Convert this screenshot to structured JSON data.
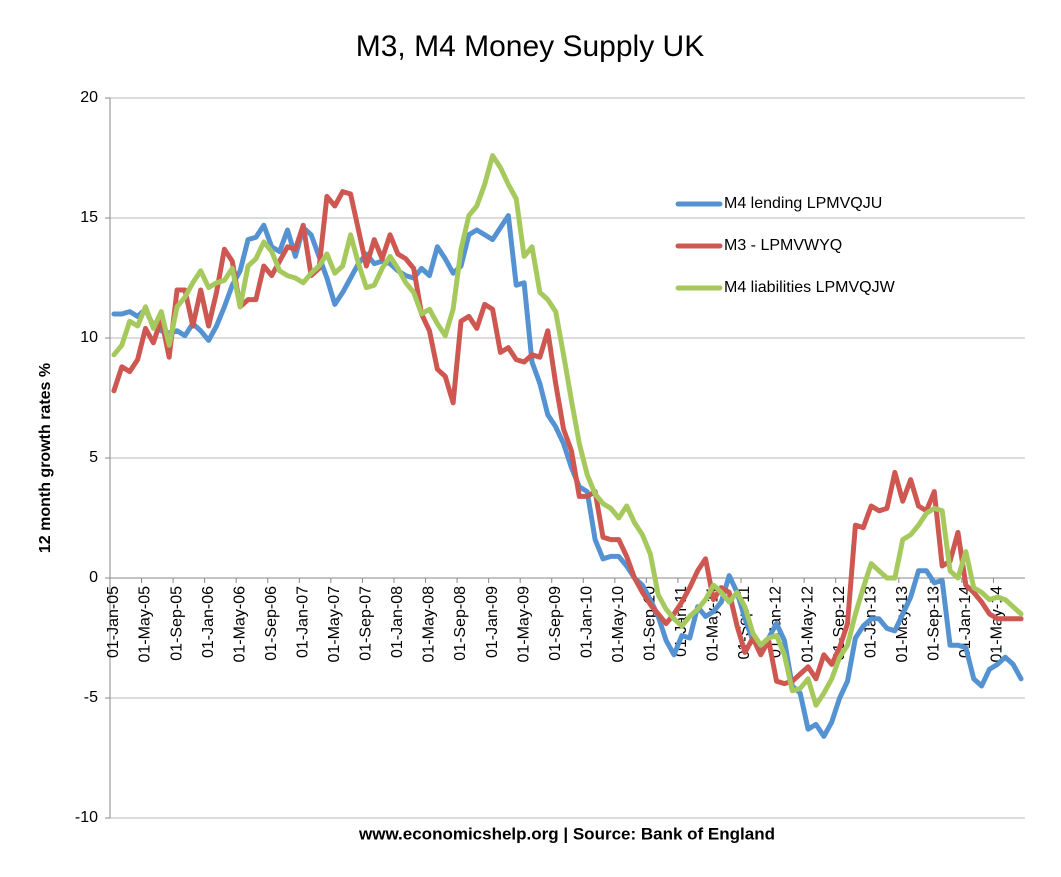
{
  "chart_data": {
    "type": "line",
    "title": "M3, M4 Money Supply UK",
    "y_label": "12 month growth rates %",
    "annotation": "www.economicshelp.org | Source: Bank of England",
    "categories": [
      "01-Jan-05",
      null,
      null,
      null,
      "01-May-05",
      null,
      null,
      null,
      "01-Sep-05",
      null,
      null,
      null,
      "01-Jan-06",
      null,
      null,
      null,
      "01-May-06",
      null,
      null,
      null,
      "01-Sep-06",
      null,
      null,
      null,
      "01-Jan-07",
      null,
      null,
      null,
      "01-May-07",
      null,
      null,
      null,
      "01-Sep-07",
      null,
      null,
      null,
      "01-Jan-08",
      null,
      null,
      null,
      "01-May-08",
      null,
      null,
      null,
      "01-Sep-08",
      null,
      null,
      null,
      "01-Jan-09",
      null,
      null,
      null,
      "01-May-09",
      null,
      null,
      null,
      "01-Sep-09",
      null,
      null,
      null,
      "01-Jan-10",
      null,
      null,
      null,
      "01-May-10",
      null,
      null,
      null,
      "01-Sep-10",
      null,
      null,
      null,
      "01-Jan-11",
      null,
      null,
      null,
      "01-May-11",
      null,
      null,
      null,
      "01-Sep-11",
      null,
      null,
      null,
      "01-Jan-12",
      null,
      null,
      null,
      "01-May-12",
      null,
      null,
      null,
      "01-Sep-12",
      null,
      null,
      null,
      "01-Jan-13",
      null,
      null,
      null,
      "01-May-13",
      null,
      null,
      null,
      "01-Sep-13",
      null,
      null,
      null,
      "01-Jan-14",
      null,
      null,
      null,
      "01-May-14",
      null,
      null,
      null
    ],
    "series": [
      {
        "name": "M4 lending LPMVQJU",
        "color": "#5592d2",
        "values": [
          11,
          11,
          11.1,
          10.9,
          11.2,
          10.5,
          10.3,
          10.2,
          10.3,
          10.1,
          10.6,
          10.3,
          9.9,
          10.5,
          11.3,
          12.2,
          12.8,
          14.1,
          14.2,
          14.7,
          13.8,
          13.6,
          14.5,
          13.4,
          14.6,
          14.3,
          13.4,
          12.5,
          11.4,
          11.9,
          12.5,
          13.1,
          13.5,
          13.1,
          13.2,
          13.1,
          12.8,
          12.6,
          12.5,
          12.9,
          12.6,
          13.8,
          13.3,
          12.7,
          13.0,
          14.3,
          14.5,
          14.3,
          14.1,
          14.6,
          15.1,
          12.2,
          12.3,
          9.0,
          8.1,
          6.8,
          6.3,
          5.6,
          4.6,
          3.8,
          3.6,
          1.6,
          0.8,
          0.9,
          0.9,
          0.5,
          0.0,
          -0.3,
          -0.9,
          -1.6,
          -2.6,
          -3.2,
          -2.4,
          -2.5,
          -1.2,
          -1.6,
          -1.4,
          -1.0,
          0.1,
          -0.6,
          -1.7,
          -2.6,
          -2.9,
          -2.5,
          -1.9,
          -2.6,
          -4.5,
          -4.8,
          -6.3,
          -6.1,
          -6.6,
          -6.0,
          -5.0,
          -4.3,
          -2.5,
          -2.0,
          -1.7,
          -1.7,
          -2.1,
          -2.2,
          -1.5,
          -0.8,
          0.3,
          0.3,
          -0.2,
          -0.1,
          -2.8,
          -2.8,
          -2.9,
          -4.2,
          -4.5,
          -3.8,
          -3.6,
          -3.3,
          -3.6,
          -4.2
        ]
      },
      {
        "name": "M3 - LPMVWYQ",
        "color": "#cf5751",
        "values": [
          7.8,
          8.8,
          8.6,
          9.1,
          10.4,
          9.8,
          10.8,
          9.2,
          12.0,
          12.0,
          10.5,
          12.0,
          10.5,
          11.9,
          13.7,
          13.2,
          11.3,
          11.6,
          11.6,
          13.0,
          12.6,
          13.2,
          13.8,
          13.7,
          14.7,
          12.6,
          12.9,
          15.9,
          15.5,
          16.1,
          16.0,
          14.5,
          13.0,
          14.1,
          13.3,
          14.3,
          13.5,
          13.3,
          12.9,
          11.0,
          10.3,
          8.7,
          8.4,
          7.3,
          10.7,
          10.9,
          10.4,
          11.4,
          11.2,
          9.4,
          9.6,
          9.1,
          9.0,
          9.3,
          9.2,
          10.3,
          8.1,
          6.2,
          5.3,
          3.4,
          3.4,
          3.6,
          1.7,
          1.6,
          1.6,
          0.9,
          0.0,
          -0.6,
          -1.1,
          -1.5,
          -1.9,
          -1.5,
          -1.0,
          -0.4,
          0.3,
          0.8,
          -0.9,
          -0.4,
          -0.6,
          -2.0,
          -3.1,
          -2.5,
          -3.2,
          -2.6,
          -4.3,
          -4.4,
          -4.3,
          -4.0,
          -3.7,
          -4.2,
          -3.2,
          -3.6,
          -2.9,
          -1.9,
          2.2,
          2.1,
          3.0,
          2.8,
          2.9,
          4.4,
          3.2,
          4.1,
          3.0,
          2.8,
          3.6,
          0.5,
          0.7,
          1.9,
          -0.3,
          -0.6,
          -1.0,
          -1.5,
          -1.7,
          -1.7,
          -1.7,
          -1.7
        ]
      },
      {
        "name": "M4 liabilities LPMVQJW",
        "color": "#a6c95d",
        "values": [
          9.3,
          9.7,
          10.7,
          10.5,
          11.3,
          10.4,
          11.1,
          9.7,
          11.3,
          11.7,
          12.3,
          12.8,
          12.1,
          12.3,
          12.4,
          12.9,
          11.3,
          13.0,
          13.3,
          14.0,
          13.6,
          12.8,
          12.6,
          12.5,
          12.3,
          12.7,
          13.0,
          13.5,
          12.7,
          13.0,
          14.3,
          13.1,
          12.1,
          12.2,
          12.9,
          13.4,
          12.9,
          12.3,
          11.9,
          11.0,
          11.2,
          10.6,
          10.1,
          11.2,
          13.7,
          15.1,
          15.5,
          16.4,
          17.6,
          17.1,
          16.4,
          15.8,
          13.4,
          13.8,
          11.9,
          11.6,
          11.1,
          9.3,
          7.4,
          5.6,
          4.3,
          3.5,
          3.1,
          2.9,
          2.5,
          3.0,
          2.3,
          1.8,
          1.0,
          -0.7,
          -1.3,
          -1.7,
          -2.0,
          -1.6,
          -1.3,
          -0.9,
          -0.3,
          -0.6,
          -1.0,
          -0.6,
          -1.2,
          -2.3,
          -2.8,
          -2.5,
          -2.4,
          -3.2,
          -4.7,
          -4.6,
          -4.2,
          -5.3,
          -4.8,
          -4.2,
          -3.3,
          -2.8,
          -1.5,
          -0.4,
          0.6,
          0.3,
          0.0,
          0.0,
          1.6,
          1.8,
          2.2,
          2.7,
          2.9,
          2.8,
          0.3,
          0.0,
          1.1,
          -0.4,
          -0.6,
          -0.9,
          -0.8,
          -0.9,
          -1.2,
          -1.5
        ]
      }
    ],
    "ylim": [
      -10,
      20
    ],
    "yticks": [
      -10,
      -5,
      0,
      5,
      10,
      15,
      20
    ],
    "grid": true,
    "legend": "right"
  }
}
